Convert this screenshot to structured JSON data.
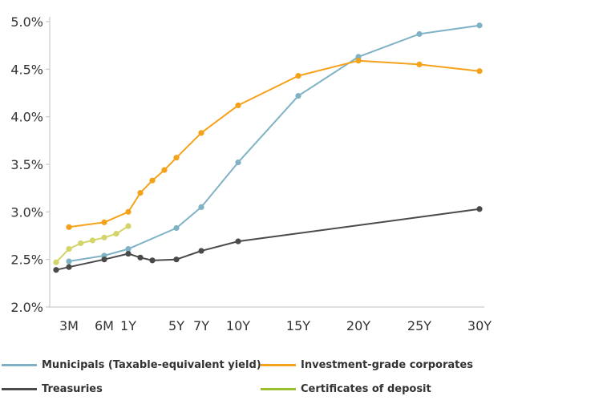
{
  "chart_data": {
    "type": "line",
    "title": "",
    "xlabel": "",
    "ylabel": "",
    "x_tick_labels": [
      {
        "label": "3M",
        "pos": 0.25
      },
      {
        "label": "6M",
        "pos": 0.5
      },
      {
        "label": "1Y",
        "pos": 1
      },
      {
        "label": "5Y",
        "pos": 5
      },
      {
        "label": "7Y",
        "pos": 7
      },
      {
        "label": "10Y",
        "pos": 10
      },
      {
        "label": "15Y",
        "pos": 15
      },
      {
        "label": "20Y",
        "pos": 20
      },
      {
        "label": "25Y",
        "pos": 25
      },
      {
        "label": "30Y",
        "pos": 30
      }
    ],
    "y_ticks": [
      {
        "label": "2.0%",
        "value": 2.0
      },
      {
        "label": "2.5%",
        "value": 2.5
      },
      {
        "label": "3.0%",
        "value": 3.0
      },
      {
        "label": "3.5%",
        "value": 3.5
      },
      {
        "label": "4.0%",
        "value": 4.0
      },
      {
        "label": "4.5%",
        "value": 4.5
      },
      {
        "label": "5.0%",
        "value": 5.0
      }
    ],
    "ylim": [
      2.0,
      5.0
    ],
    "grid": false,
    "legend_position": "bottom",
    "series": [
      {
        "name": "Municipals (Taxable-equivalent yield)",
        "color": "#7fb2c5",
        "points": [
          [
            0.25,
            2.48
          ],
          [
            0.5,
            2.54
          ],
          [
            1,
            2.61
          ],
          [
            5,
            2.83
          ],
          [
            7,
            3.05
          ],
          [
            10,
            3.52
          ],
          [
            15,
            4.22
          ],
          [
            20,
            4.63
          ],
          [
            25,
            4.87
          ],
          [
            30,
            4.96
          ]
        ]
      },
      {
        "name": "Investment-grade corporates",
        "color": "#f5a21b",
        "points": [
          [
            0.25,
            2.84
          ],
          [
            0.5,
            2.89
          ],
          [
            1,
            3.0
          ],
          [
            2,
            3.2
          ],
          [
            3,
            3.33
          ],
          [
            4,
            3.44
          ],
          [
            5,
            3.57
          ],
          [
            7,
            3.83
          ],
          [
            10,
            4.12
          ],
          [
            15,
            4.43
          ],
          [
            20,
            4.59
          ],
          [
            25,
            4.55
          ],
          [
            30,
            4.48
          ]
        ]
      },
      {
        "name": "Treasuries",
        "color": "#4a4a4a",
        "points": [
          [
            0.0833,
            2.39
          ],
          [
            0.25,
            2.42
          ],
          [
            0.5,
            2.5
          ],
          [
            1,
            2.56
          ],
          [
            2,
            2.52
          ],
          [
            3,
            2.49
          ],
          [
            5,
            2.5
          ],
          [
            7,
            2.59
          ],
          [
            10,
            2.69
          ],
          [
            30,
            3.03
          ]
        ]
      },
      {
        "name": "Certificates of deposit",
        "color": "#d4d46a",
        "legend_color": "#9bbf2a",
        "points": [
          [
            0.0833,
            2.47
          ],
          [
            0.25,
            2.61
          ],
          [
            0.3333,
            2.67
          ],
          [
            0.4167,
            2.7
          ],
          [
            0.5,
            2.73
          ],
          [
            0.75,
            2.77
          ],
          [
            1,
            2.85
          ]
        ]
      }
    ]
  }
}
